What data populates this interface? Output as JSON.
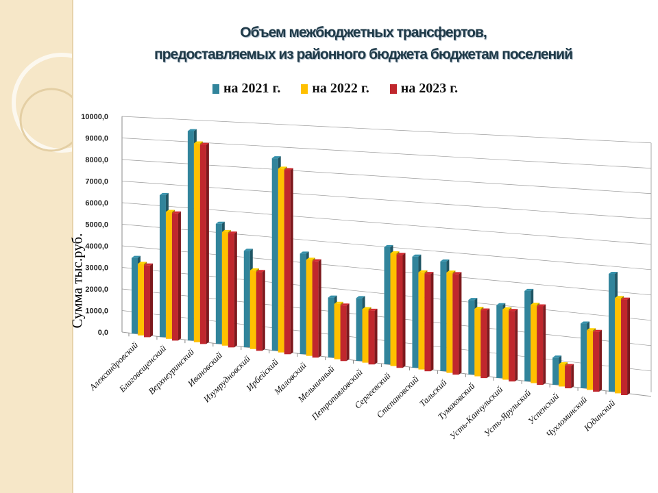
{
  "chart_data": {
    "type": "bar",
    "title_line1": "Объем межбюджетных трансфертов,",
    "title_line2": "предоставляемых из районного бюджета  бюджетам поселений",
    "ylabel": "Сумма  тыс.руб.",
    "ylim": [
      0,
      10000
    ],
    "yticks": [
      "0,0",
      "1000,0",
      "2000,0",
      "3000,0",
      "4000,0",
      "5000,0",
      "6000,0",
      "7000,0",
      "8000,0",
      "9000,0",
      "10000,0"
    ],
    "categories": [
      "Александровский",
      "Благовещенский",
      "Верхнеуринский",
      "Ивановский",
      "Изумрудновский",
      "Ирбейский",
      "Маловский",
      "Мельничный",
      "Петропавловский",
      "Сергеевский",
      "Степановский",
      "Тальский",
      "Тумаковский",
      "Усть-Канчульский",
      "Усть-Ярульский",
      "Успенский",
      "Чухломинский",
      "Юдинский"
    ],
    "series": [
      {
        "name": "на 2021 г.",
        "color": "#31849b",
        "values": [
          3500,
          6500,
          9500,
          5400,
          4300,
          8500,
          4400,
          2600,
          2700,
          5000,
          4700,
          4600,
          3100,
          3000,
          3700,
          1100,
          2600,
          4700
        ]
      },
      {
        "name": "на 2022 г.",
        "color": "#ffc000",
        "values": [
          3300,
          5800,
          9000,
          5100,
          3500,
          8100,
          4200,
          2400,
          2300,
          4800,
          4100,
          4200,
          2800,
          2900,
          3200,
          900,
          2400,
          3800
        ]
      },
      {
        "name": "на 2023 г.",
        "color": "#c0272d",
        "values": [
          3300,
          5800,
          9000,
          5100,
          3500,
          8100,
          4200,
          2400,
          2300,
          4800,
          4100,
          4200,
          2800,
          2900,
          3200,
          900,
          2400,
          3800
        ]
      }
    ],
    "legend": "top",
    "grid": true
  }
}
